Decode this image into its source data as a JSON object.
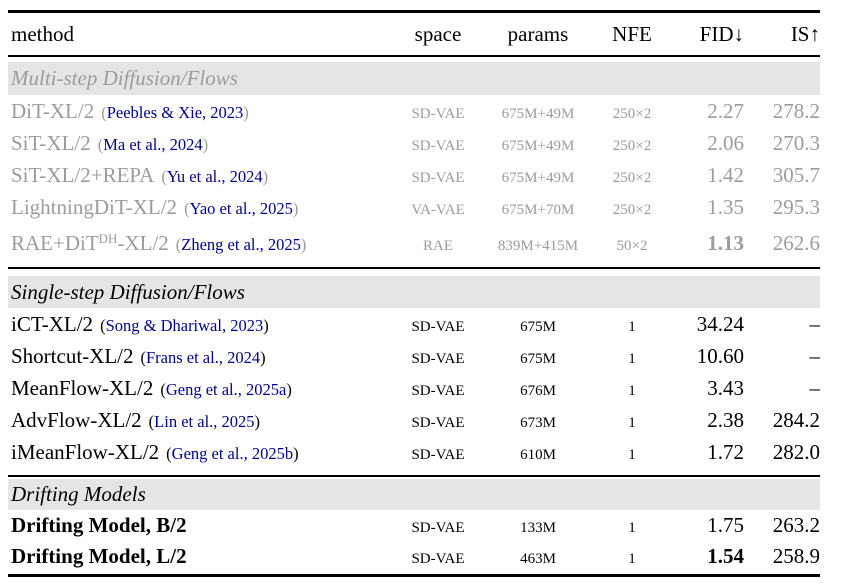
{
  "table": {
    "punct": {
      "open": "(",
      "close": ")"
    },
    "colors": {
      "grayed_text": "#9c9c9c",
      "citation_link": "#00008b",
      "section_band": "#e5e5e5",
      "rule": "#000000"
    },
    "columns": [
      "method",
      "space",
      "params",
      "NFE",
      "FID↓",
      "IS↑"
    ],
    "sections": [
      {
        "header": "Multi-step Diffusion/Flows",
        "grayed": true,
        "rows": [
          {
            "method": "DiT-XL/2",
            "citation": "Peebles & Xie, 2023",
            "space": "SD-VAE",
            "params": "675M+49M",
            "nfe": "250×2",
            "fid": "2.27",
            "is": "278.2"
          },
          {
            "method": "SiT-XL/2",
            "citation": "Ma et al., 2024",
            "space": "SD-VAE",
            "params": "675M+49M",
            "nfe": "250×2",
            "fid": "2.06",
            "is": "270.3"
          },
          {
            "method": "SiT-XL/2+REPA",
            "citation": "Yu et al., 2024",
            "space": "SD-VAE",
            "params": "675M+49M",
            "nfe": "250×2",
            "fid": "1.42",
            "is": "305.7"
          },
          {
            "method": "LightningDiT-XL/2",
            "citation": "Yao et al., 2025",
            "space": "VA-VAE",
            "params": "675M+70M",
            "nfe": "250×2",
            "fid": "1.35",
            "is": "295.3"
          },
          {
            "method": "RAE+DiT",
            "method_sup": "DH",
            "method_suffix": "-XL/2",
            "citation": "Zheng et al., 2025",
            "space": "RAE",
            "params": "839M+415M",
            "nfe": "50×2",
            "fid": "1.13",
            "is": "262.6"
          }
        ]
      },
      {
        "header": "Single-step Diffusion/Flows",
        "grayed": false,
        "rows": [
          {
            "method": "iCT-XL/2",
            "citation": "Song & Dhariwal, 2023",
            "space": "SD-VAE",
            "params": "675M",
            "nfe": "1",
            "fid": "34.24",
            "is": "–"
          },
          {
            "method": "Shortcut-XL/2",
            "citation": "Frans et al., 2024",
            "space": "SD-VAE",
            "params": "675M",
            "nfe": "1",
            "fid": "10.60",
            "is": "–"
          },
          {
            "method": "MeanFlow-XL/2",
            "citation": "Geng et al., 2025a",
            "space": "SD-VAE",
            "params": "676M",
            "nfe": "1",
            "fid": "3.43",
            "is": "–"
          },
          {
            "method": "AdvFlow-XL/2",
            "citation": "Lin et al., 2025",
            "space": "SD-VAE",
            "params": "673M",
            "nfe": "1",
            "fid": "2.38",
            "is": "284.2"
          },
          {
            "method": "iMeanFlow-XL/2",
            "citation": "Geng et al., 2025b",
            "space": "SD-VAE",
            "params": "610M",
            "nfe": "1",
            "fid": "1.72",
            "is": "282.0"
          }
        ]
      },
      {
        "header": "Drifting Models",
        "grayed": false,
        "rows": [
          {
            "method": "Drifting Model, B/2",
            "space": "SD-VAE",
            "params": "133M",
            "nfe": "1",
            "fid": "1.75",
            "is": "263.2"
          },
          {
            "method": "Drifting Model, L/2",
            "space": "SD-VAE",
            "params": "463M",
            "nfe": "1",
            "fid": "1.54",
            "is": "258.9"
          }
        ]
      }
    ]
  }
}
